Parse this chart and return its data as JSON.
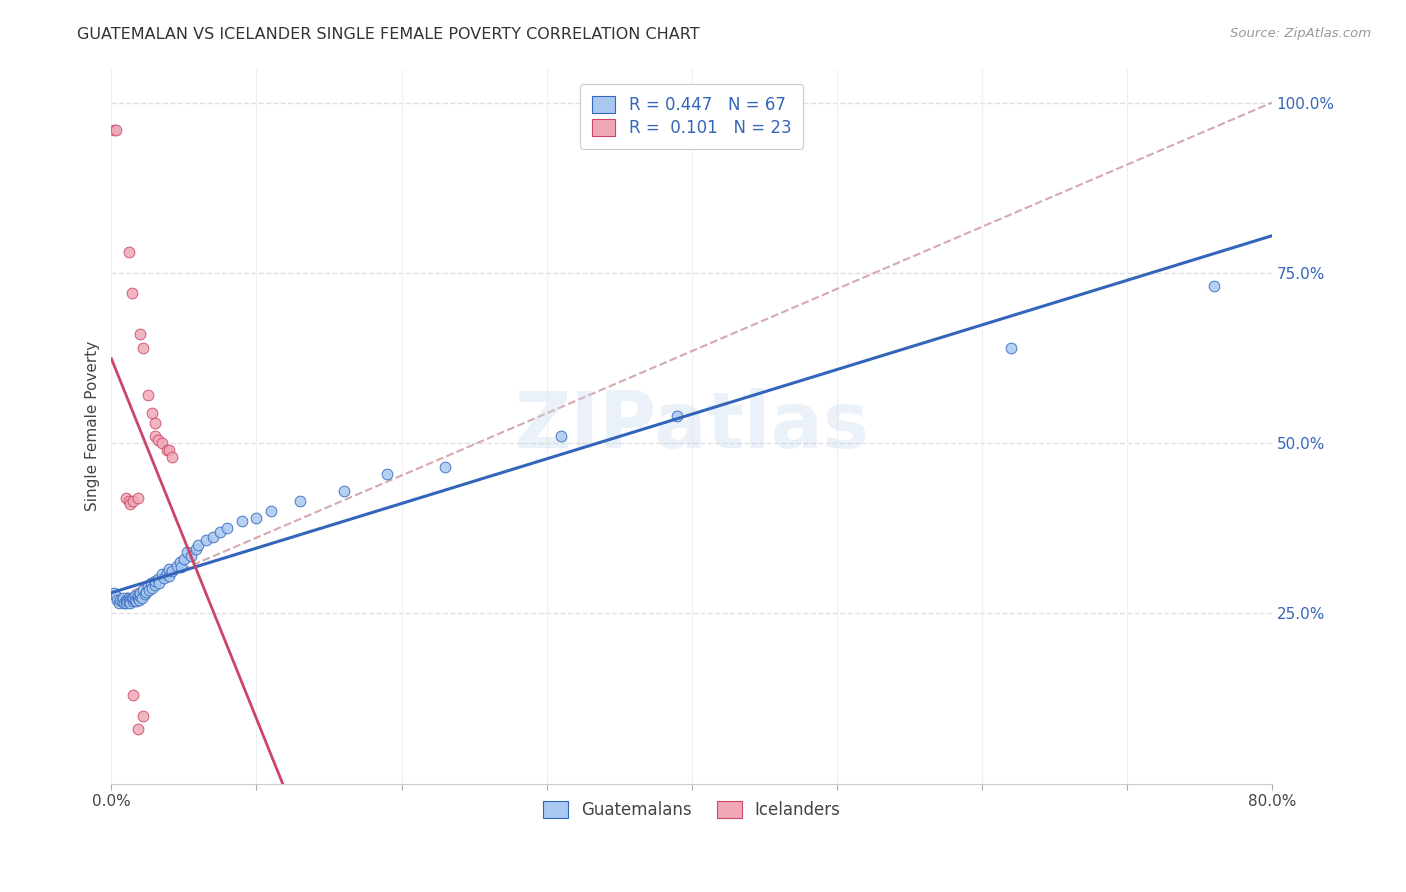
{
  "title": "GUATEMALAN VS ICELANDER SINGLE FEMALE POVERTY CORRELATION CHART",
  "source": "Source: ZipAtlas.com",
  "ylabel": "Single Female Poverty",
  "watermark": "ZIPatlas",
  "legend_bottom": [
    "Guatemalans",
    "Icelanders"
  ],
  "blue_r": "0.447",
  "blue_n": "67",
  "pink_r": "0.101",
  "pink_n": "23",
  "blue_color": "#a8c8f0",
  "pink_color": "#f0a8b8",
  "blue_line_color": "#3366bb",
  "pink_line_color": "#cc4466",
  "dashed_line_color": "#d0a0a8",
  "guatemalan_points": [
    [
      0.002,
      0.28
    ],
    [
      0.003,
      0.275
    ],
    [
      0.004,
      0.27
    ],
    [
      0.005,
      0.265
    ],
    [
      0.006,
      0.27
    ],
    [
      0.007,
      0.268
    ],
    [
      0.008,
      0.272
    ],
    [
      0.009,
      0.265
    ],
    [
      0.01,
      0.27
    ],
    [
      0.01,
      0.265
    ],
    [
      0.011,
      0.268
    ],
    [
      0.012,
      0.272
    ],
    [
      0.012,
      0.268
    ],
    [
      0.013,
      0.27
    ],
    [
      0.013,
      0.265
    ],
    [
      0.014,
      0.272
    ],
    [
      0.015,
      0.268
    ],
    [
      0.015,
      0.272
    ],
    [
      0.016,
      0.275
    ],
    [
      0.016,
      0.27
    ],
    [
      0.017,
      0.268
    ],
    [
      0.018,
      0.272
    ],
    [
      0.018,
      0.275
    ],
    [
      0.019,
      0.27
    ],
    [
      0.02,
      0.275
    ],
    [
      0.02,
      0.28
    ],
    [
      0.021,
      0.272
    ],
    [
      0.022,
      0.285
    ],
    [
      0.023,
      0.278
    ],
    [
      0.024,
      0.282
    ],
    [
      0.025,
      0.29
    ],
    [
      0.026,
      0.285
    ],
    [
      0.027,
      0.295
    ],
    [
      0.028,
      0.288
    ],
    [
      0.03,
      0.292
    ],
    [
      0.03,
      0.298
    ],
    [
      0.032,
      0.3
    ],
    [
      0.033,
      0.295
    ],
    [
      0.035,
      0.308
    ],
    [
      0.036,
      0.302
    ],
    [
      0.038,
      0.31
    ],
    [
      0.04,
      0.305
    ],
    [
      0.04,
      0.315
    ],
    [
      0.042,
      0.312
    ],
    [
      0.045,
      0.32
    ],
    [
      0.047,
      0.325
    ],
    [
      0.048,
      0.318
    ],
    [
      0.05,
      0.33
    ],
    [
      0.052,
      0.34
    ],
    [
      0.055,
      0.335
    ],
    [
      0.058,
      0.345
    ],
    [
      0.06,
      0.35
    ],
    [
      0.065,
      0.358
    ],
    [
      0.07,
      0.362
    ],
    [
      0.075,
      0.37
    ],
    [
      0.08,
      0.375
    ],
    [
      0.09,
      0.385
    ],
    [
      0.1,
      0.39
    ],
    [
      0.11,
      0.4
    ],
    [
      0.13,
      0.415
    ],
    [
      0.16,
      0.43
    ],
    [
      0.19,
      0.455
    ],
    [
      0.23,
      0.465
    ],
    [
      0.31,
      0.51
    ],
    [
      0.39,
      0.54
    ],
    [
      0.62,
      0.64
    ],
    [
      0.76,
      0.73
    ]
  ],
  "icelander_points": [
    [
      0.002,
      0.96
    ],
    [
      0.003,
      0.96
    ],
    [
      0.012,
      0.78
    ],
    [
      0.014,
      0.72
    ],
    [
      0.02,
      0.66
    ],
    [
      0.022,
      0.64
    ],
    [
      0.025,
      0.57
    ],
    [
      0.028,
      0.545
    ],
    [
      0.03,
      0.53
    ],
    [
      0.03,
      0.51
    ],
    [
      0.032,
      0.505
    ],
    [
      0.035,
      0.5
    ],
    [
      0.038,
      0.49
    ],
    [
      0.04,
      0.49
    ],
    [
      0.042,
      0.48
    ],
    [
      0.01,
      0.42
    ],
    [
      0.012,
      0.415
    ],
    [
      0.013,
      0.41
    ],
    [
      0.015,
      0.415
    ],
    [
      0.018,
      0.42
    ],
    [
      0.015,
      0.13
    ],
    [
      0.018,
      0.08
    ],
    [
      0.022,
      0.1
    ]
  ],
  "xlim": [
    0.0,
    0.8
  ],
  "ylim": [
    0.0,
    1.05
  ],
  "x_ticks": [
    0.0,
    0.1,
    0.2,
    0.3,
    0.4,
    0.5,
    0.6,
    0.7,
    0.8
  ],
  "x_tick_display": [
    "0.0%",
    "",
    "",
    "",
    "",
    "",
    "",
    "",
    "80.0%"
  ],
  "y_ticks_right": [
    0.25,
    0.5,
    0.75,
    1.0
  ],
  "y_tick_display_right": [
    "25.0%",
    "50.0%",
    "75.0%",
    "100.0%"
  ],
  "grid_color": "#e0e0e0",
  "bg_color": "#ffffff"
}
